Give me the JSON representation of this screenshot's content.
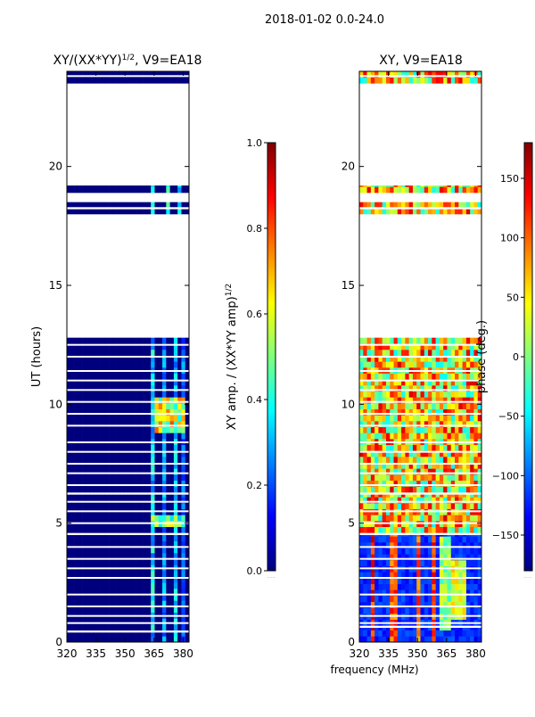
{
  "suptitle": "2018-01-02 0.0-24.0",
  "colors": {
    "background": "#ffffff",
    "low": "#00007f",
    "jet": [
      "#00007f",
      "#0000ff",
      "#007fff",
      "#00ffff",
      "#7fff7f",
      "#ffff00",
      "#ff7f00",
      "#ff0000",
      "#7f0000"
    ]
  },
  "chart_data": [
    {
      "type": "heatmap",
      "title_main": "XY/(XX*YY)",
      "title_sup": "1/2",
      "title_suffix": ", V9=EA18",
      "xlabel": "",
      "ylabel": "UT (hours)",
      "xlim": [
        320,
        383
      ],
      "ylim": [
        0,
        24
      ],
      "xticks": [
        320,
        335,
        350,
        365,
        380
      ],
      "yticks": [
        0,
        5,
        10,
        15,
        20
      ],
      "colorbar": {
        "label_main": "XY amp. / (XX*YY amp)",
        "label_sup": "1/2",
        "range": [
          0.0,
          1.0
        ],
        "ticks": [
          "0.0",
          "0.2",
          "0.4",
          "0.6",
          "0.8",
          "1.0"
        ],
        "tick_values": [
          0.0,
          0.2,
          0.4,
          0.6,
          0.8,
          1.0
        ],
        "footer": "......"
      },
      "data_segments_hours": [
        [
          0.0,
          0.4
        ],
        [
          0.5,
          4.5
        ],
        [
          4.6,
          6.2
        ],
        [
          6.3,
          12.8
        ],
        [
          18.0,
          18.2
        ],
        [
          18.3,
          18.5
        ],
        [
          18.9,
          19.2
        ],
        [
          23.5,
          24.0
        ]
      ],
      "missing_rows_hours": [
        0.8,
        1.1,
        1.5,
        2.0,
        2.7,
        3.1,
        3.5,
        4.0,
        5.0,
        5.5,
        5.9,
        6.6,
        7.1,
        7.5,
        8.0,
        8.4,
        9.1,
        9.6,
        10.1,
        10.6,
        11.0,
        11.4,
        12.0,
        12.5,
        23.8
      ],
      "features": [
        {
          "x": [
            363,
            366
          ],
          "y": [
            0.0,
            12.8
          ],
          "level": 0.35
        },
        {
          "x": [
            369,
            371
          ],
          "y": [
            0.0,
            12.8
          ],
          "level": 0.28
        },
        {
          "x": [
            375,
            377
          ],
          "y": [
            0.0,
            12.8
          ],
          "level": 0.33
        },
        {
          "x": [
            379,
            381
          ],
          "y": [
            0.0,
            12.8
          ],
          "level": 0.25
        },
        {
          "x": [
            363,
            366
          ],
          "y": [
            18.0,
            19.2
          ],
          "level": 0.45
        },
        {
          "x": [
            372,
            374
          ],
          "y": [
            18.0,
            19.2
          ],
          "level": 0.4
        },
        {
          "x": [
            378,
            380
          ],
          "y": [
            18.0,
            19.2
          ],
          "level": 0.35
        },
        {
          "x": [
            366,
            381
          ],
          "y": [
            8.8,
            10.2
          ],
          "level": 0.62
        },
        {
          "x": [
            363,
            381
          ],
          "y": [
            4.8,
            5.4
          ],
          "level": 0.5
        },
        {
          "x": [
            364,
            367
          ],
          "y": [
            8.8,
            8.9
          ],
          "level": 0.9
        }
      ]
    },
    {
      "type": "heatmap",
      "title_main": "XY, V9=EA18",
      "xlabel": "frequency (MHz)",
      "ylabel": "",
      "xlim": [
        320,
        383
      ],
      "ylim": [
        0,
        24
      ],
      "xticks": [
        320,
        335,
        350,
        365,
        380
      ],
      "yticks": [
        0,
        5,
        10,
        15,
        20
      ],
      "colorbar": {
        "label_main": "phase (deg.)",
        "range": [
          -180,
          180
        ],
        "ticks": [
          "150",
          "100",
          "50",
          "0",
          "−50",
          "−100",
          "−150"
        ],
        "tick_values": [
          150,
          100,
          50,
          0,
          -50,
          -100,
          -150
        ],
        "footer": "......"
      },
      "data_segments_hours": [
        [
          0.0,
          0.6
        ],
        [
          0.7,
          4.5
        ],
        [
          4.6,
          6.2
        ],
        [
          6.3,
          12.8
        ],
        [
          18.0,
          18.2
        ],
        [
          18.3,
          18.5
        ],
        [
          18.9,
          19.2
        ],
        [
          23.5,
          24.0
        ]
      ],
      "missing_rows_hours": [
        0.8,
        1.1,
        1.5,
        2.0,
        2.7,
        3.1,
        3.5,
        4.0,
        5.0,
        5.5,
        5.9,
        6.6,
        7.1,
        7.5,
        8.0,
        8.4,
        9.1,
        9.6,
        10.1,
        10.6,
        11.0,
        11.4,
        12.0,
        12.5,
        23.8
      ],
      "base_level_low": 0.12,
      "base_level_high": 0.62,
      "stripes": [
        {
          "x": [
            325,
            328
          ],
          "y": [
            0.0,
            4.5
          ],
          "level": 0.85
        },
        {
          "x": [
            336,
            339
          ],
          "y": [
            0.0,
            4.5
          ],
          "level": 0.8
        },
        {
          "x": [
            349,
            351
          ],
          "y": [
            0.0,
            4.5
          ],
          "level": 0.78
        },
        {
          "x": [
            357,
            359
          ],
          "y": [
            0.0,
            4.5
          ],
          "level": 0.82
        },
        {
          "x": [
            362,
            367
          ],
          "y": [
            0.5,
            4.4
          ],
          "level": 0.5
        },
        {
          "x": [
            367,
            375
          ],
          "y": [
            1.0,
            3.5
          ],
          "level": 0.6
        }
      ]
    }
  ]
}
